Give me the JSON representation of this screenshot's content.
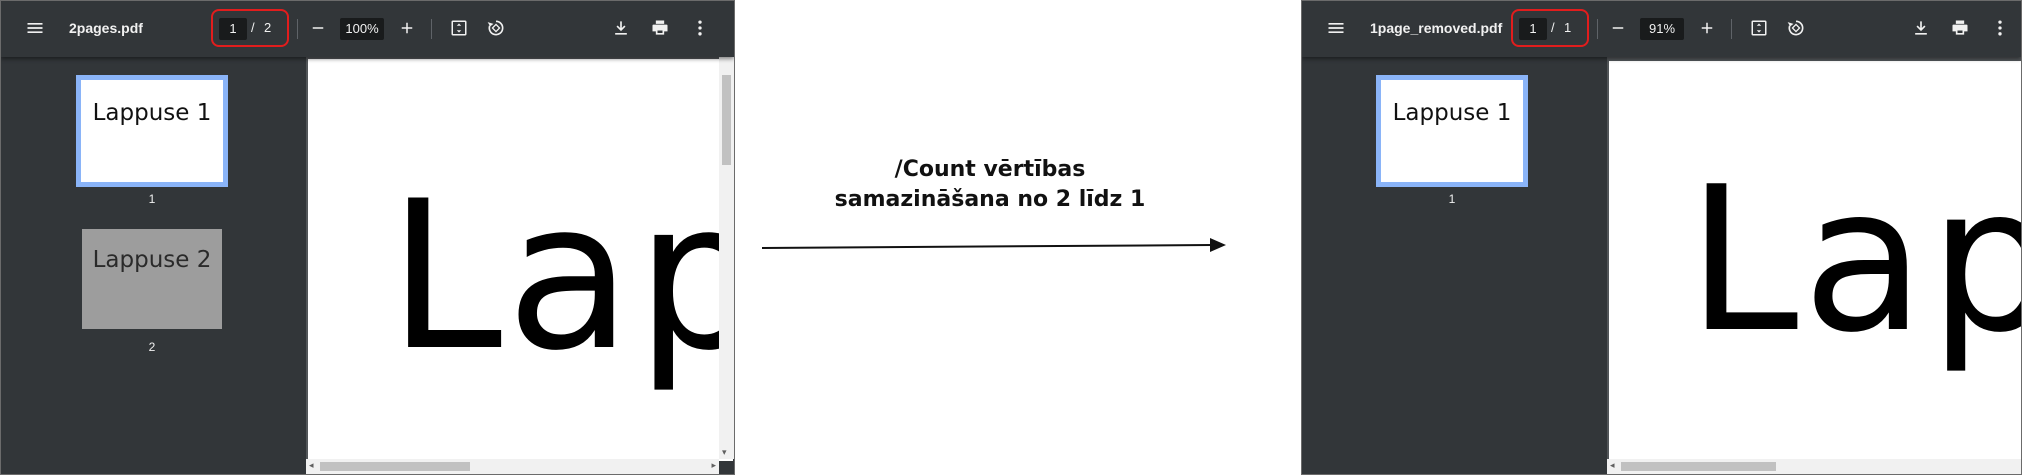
{
  "left_viewer": {
    "filename": "2pages.pdf",
    "current_page": "1",
    "page_separator": "/",
    "total_pages": "2",
    "zoom": "100%",
    "thumbnails": [
      {
        "label": "Lappuse 1",
        "number": "1"
      },
      {
        "label": "Lappuse 2",
        "number": "2"
      }
    ],
    "page_text": "Lap"
  },
  "right_viewer": {
    "filename": "1page_removed.pdf",
    "current_page": "1",
    "page_separator": "/",
    "total_pages": "1",
    "zoom": "91%",
    "thumbnails": [
      {
        "label": "Lappuse 1",
        "number": "1"
      }
    ],
    "page_text": "Lapp"
  },
  "caption": {
    "line1": "/Count vērtības",
    "line2": "samazināšana no 2 līdz 1"
  },
  "icons": {
    "menu": "menu-icon",
    "zoom_out": "minus-icon",
    "zoom_in": "plus-icon",
    "fit": "fit-page-icon",
    "rotate": "rotate-icon",
    "download": "download-icon",
    "print": "print-icon",
    "more": "more-vert-icon"
  },
  "colors": {
    "toolbar": "#323639",
    "doc_bg": "#525659",
    "highlight": "#e11d1d",
    "thumb_active": "#8ab4f8"
  }
}
